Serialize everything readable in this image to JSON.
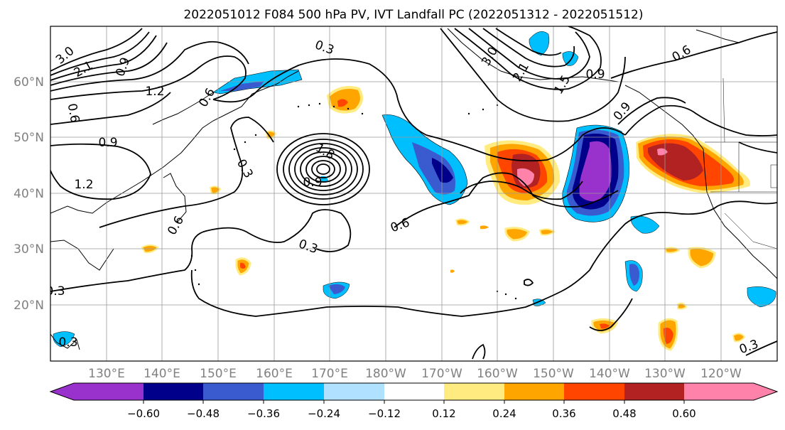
{
  "title": "2022051012 F084 500 hPa PV, IVT Landfall PC (2022051312 - 2022051512)",
  "map": {
    "lon_ticks": [
      "130°E",
      "140°E",
      "150°E",
      "160°E",
      "170°E",
      "180°W",
      "170°W",
      "160°W",
      "150°W",
      "140°W",
      "130°W",
      "120°W"
    ],
    "lat_ticks": [
      "60°N",
      "50°N",
      "40°N",
      "30°N",
      "20°N"
    ],
    "contour_labels": [
      "3.0",
      "2.1",
      "0.9",
      "1.2",
      "0.6",
      "0.9",
      "1.2",
      "0.3",
      "0.6",
      "0.3",
      "0.6",
      "1.8",
      "0.9",
      "0.3",
      "0.6",
      "0.3",
      "3.0",
      "2.1",
      "1.5",
      "0.9",
      "0.6",
      "0.9",
      "0.3",
      "0.3"
    ],
    "colors": {
      "neg_0_60": "#9932cc",
      "neg_0_48": "#00008b",
      "neg_0_36": "#3a5bd0",
      "neg_0_24": "#00bfff",
      "neg_0_12": "#b0e2ff",
      "pos_0_12": "#ffeb80",
      "pos_0_24": "#ffa500",
      "pos_0_36": "#ff4500",
      "pos_0_48": "#b22222",
      "pos_0_60": "#ff82ab"
    }
  },
  "colorbar": {
    "ticks": [
      "−0.60",
      "−0.48",
      "−0.36",
      "−0.24",
      "−0.12",
      "0.12",
      "0.24",
      "0.36",
      "0.48",
      "0.60"
    ],
    "colors": [
      "#9932cc",
      "#00008b",
      "#3a5bd0",
      "#00bfff",
      "#b0e2ff",
      "#ffffff",
      "#ffeb80",
      "#ffa500",
      "#ff4500",
      "#b22222",
      "#ff82ab"
    ]
  }
}
